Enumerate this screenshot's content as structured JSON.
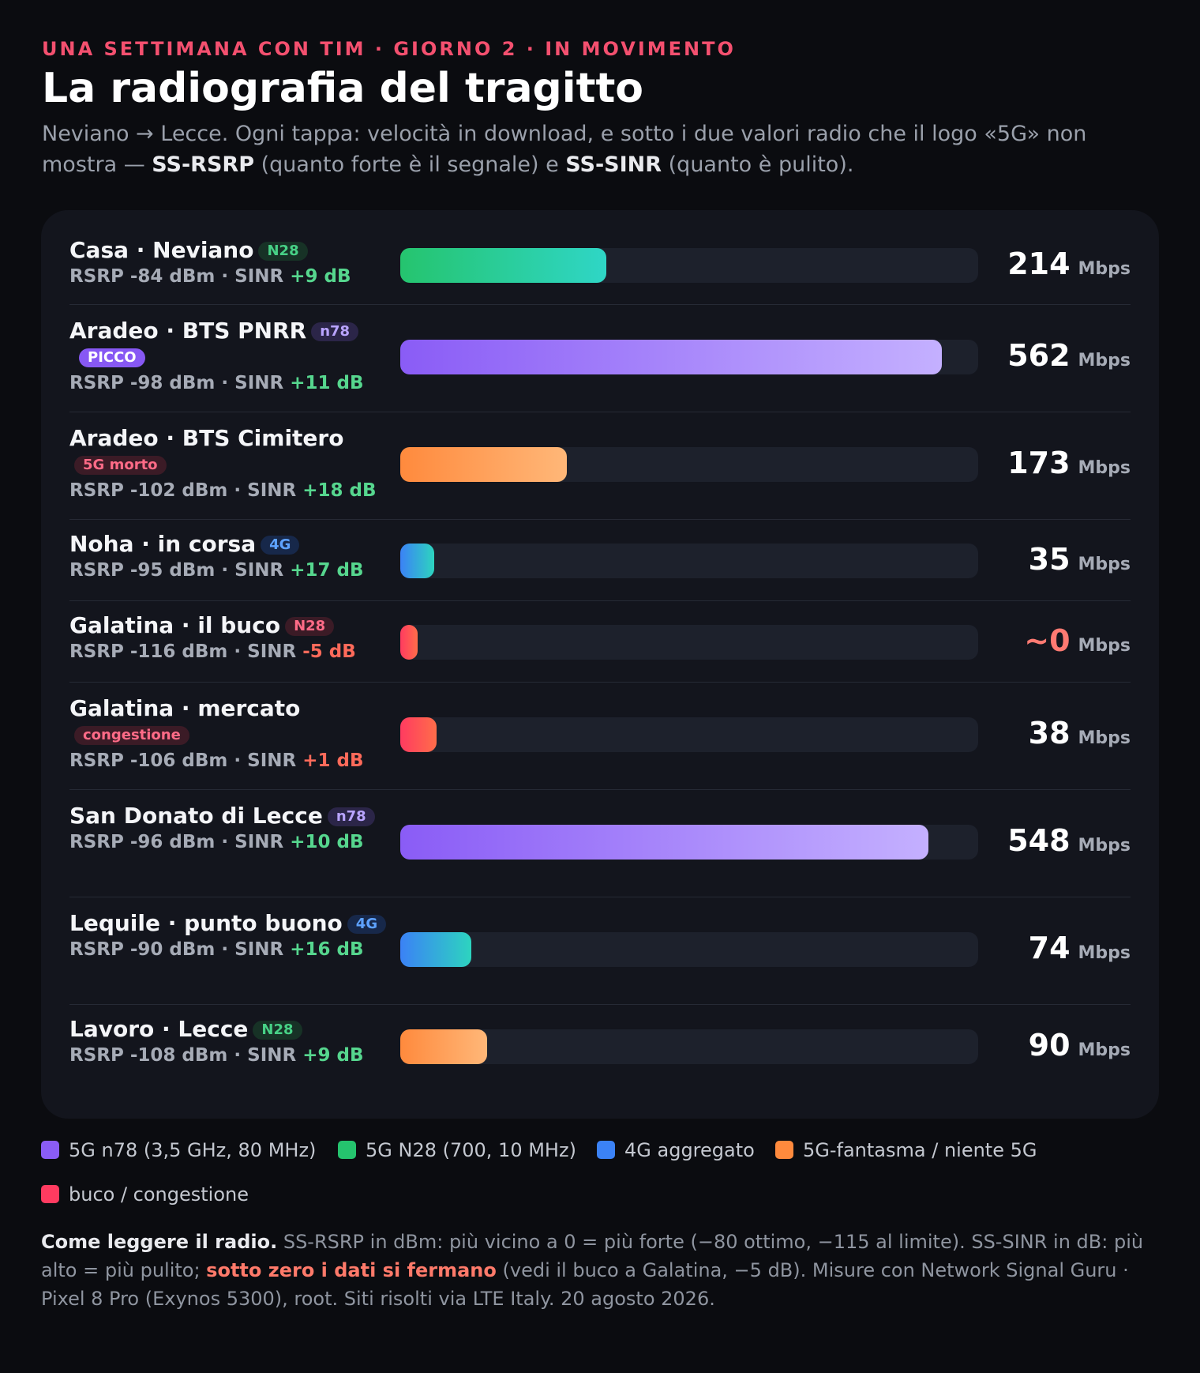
{
  "header": {
    "kicker": "UNA SETTIMANA CON TIM · GIORNO 2 · IN MOVIMENTO",
    "title": "La radiografia del tragitto",
    "subtitle_a": "Neviano → Lecce. Ogni tappa: velocità in download, e sotto i due valori radio che il logo «5G» non mostra — ",
    "subtitle_b1": "SS-RSRP",
    "subtitle_c": " (quanto forte è il segnale) e ",
    "subtitle_b2": "SS-SINR",
    "subtitle_d": " (quanto è pulito)."
  },
  "colors": {
    "n78": "#8a5cf6",
    "n28": "#25c46e",
    "lte": "#3b82f6",
    "ghost": "#ff8a3d",
    "hole": "#ff3b60"
  },
  "chart_data": {
    "type": "bar",
    "orientation": "horizontal",
    "unit": "Mbps",
    "xlim": [
      0,
      600
    ],
    "rows": [
      {
        "name": "Casa · Neviano",
        "tag": "N28",
        "tag2": "",
        "rsrp": "RSRP -84 dBm",
        "sinr": "+9 dB",
        "value": 214,
        "display": "214",
        "cls": "n28"
      },
      {
        "name": "Aradeo · BTS PNRR",
        "tag": "n78",
        "tag2": "PICCO",
        "rsrp": "RSRP -98 dBm",
        "sinr": "+11 dB",
        "value": 562,
        "display": "562",
        "cls": "n78"
      },
      {
        "name": "Aradeo · BTS Cimitero",
        "tag": "5G morto",
        "tag2": "",
        "rsrp": "RSRP -102 dBm",
        "sinr": "+18 dB",
        "value": 173,
        "display": "173",
        "cls": "ghost"
      },
      {
        "name": "Noha · in corsa",
        "tag": "4G",
        "tag2": "",
        "rsrp": "RSRP -95 dBm",
        "sinr": "+17 dB",
        "value": 35,
        "display": "35",
        "cls": "lte"
      },
      {
        "name": "Galatina · il buco",
        "tag": "N28",
        "tag2": "",
        "rsrp": "RSRP -116 dBm",
        "sinr": "-5 dB",
        "value": 0,
        "display": "~0",
        "cls": "hole"
      },
      {
        "name": "Galatina · mercato",
        "tag": "congestione",
        "tag2": "",
        "rsrp": "RSRP -106 dBm",
        "sinr": "+1 dB",
        "value": 38,
        "display": "38",
        "cls": "hole"
      },
      {
        "name": "San Donato di Lecce",
        "tag": "n78",
        "tag2": "",
        "rsrp": "RSRP -96 dBm",
        "sinr": "+10 dB",
        "value": 548,
        "display": "548",
        "cls": "n78"
      },
      {
        "name": "Lequile · punto buono",
        "tag": "4G",
        "tag2": "",
        "rsrp": "RSRP -90 dBm",
        "sinr": "+16 dB",
        "value": 74,
        "display": "74",
        "cls": "lte"
      },
      {
        "name": "Lavoro · Lecce",
        "tag": "N28",
        "tag2": "",
        "rsrp": "RSRP -108 dBm",
        "sinr": "+9 dB",
        "value": 90,
        "display": "90",
        "cls": "ghost"
      }
    ],
    "sinr_label": "SINR",
    "legend": [
      "5G n78 (3,5 GHz, 80 MHz)",
      "5G N28 (700, 10 MHz)",
      "4G aggregato",
      "5G-fantasma / niente 5G",
      "buco / congestione"
    ]
  },
  "note": {
    "lead": "Come leggere il radio.",
    "a": " SS-RSRP in dBm: più vicino a 0 = più forte (−80 ottimo, −115 al limite). SS-SINR in dB: più alto = più pulito; ",
    "highlight": "sotto zero i dati si fermano",
    "b": " (vedi il buco a Galatina, −5 dB). Misure con Network Signal Guru · Pixel 8 Pro (Exynos 5300), root. Siti risolti via LTE Italy. 20 agosto 2026."
  }
}
